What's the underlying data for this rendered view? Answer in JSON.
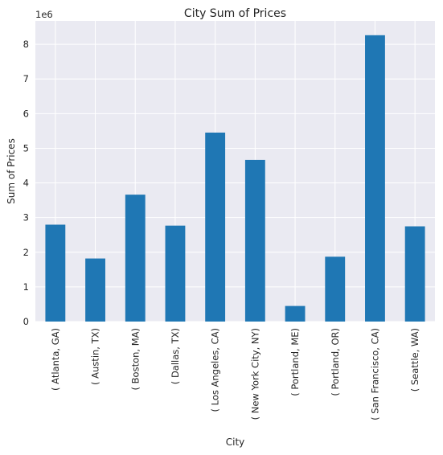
{
  "chart_data": {
    "type": "bar",
    "title": "City Sum of Prices",
    "xlabel": "City",
    "ylabel": "Sum of Prices",
    "offset_text": "1e6",
    "categories": [
      "( Atlanta, GA)",
      "( Austin, TX)",
      "( Boston, MA)",
      "( Dallas, TX)",
      "( Los Angeles, CA)",
      "( New York City, NY)",
      "( Portland, ME)",
      "( Portland, OR)",
      "( San Francisco, CA)",
      "( Seattle, WA)"
    ],
    "values": [
      2795578,
      1819581,
      3661642,
      2767975,
      5452570,
      4664317,
      449758,
      1870732,
      8262204,
      2747755
    ],
    "ylim": [
      0,
      8675314
    ],
    "yticks": [
      0,
      1,
      2,
      3,
      4,
      5,
      6,
      7,
      8
    ],
    "ytick_labels": [
      "0",
      "1",
      "2",
      "3",
      "4",
      "5",
      "6",
      "7",
      "8"
    ],
    "grid": true,
    "bar_color": "#1f77b4",
    "background_color": "#eaeaf2",
    "grid_color": "#ffffff"
  }
}
